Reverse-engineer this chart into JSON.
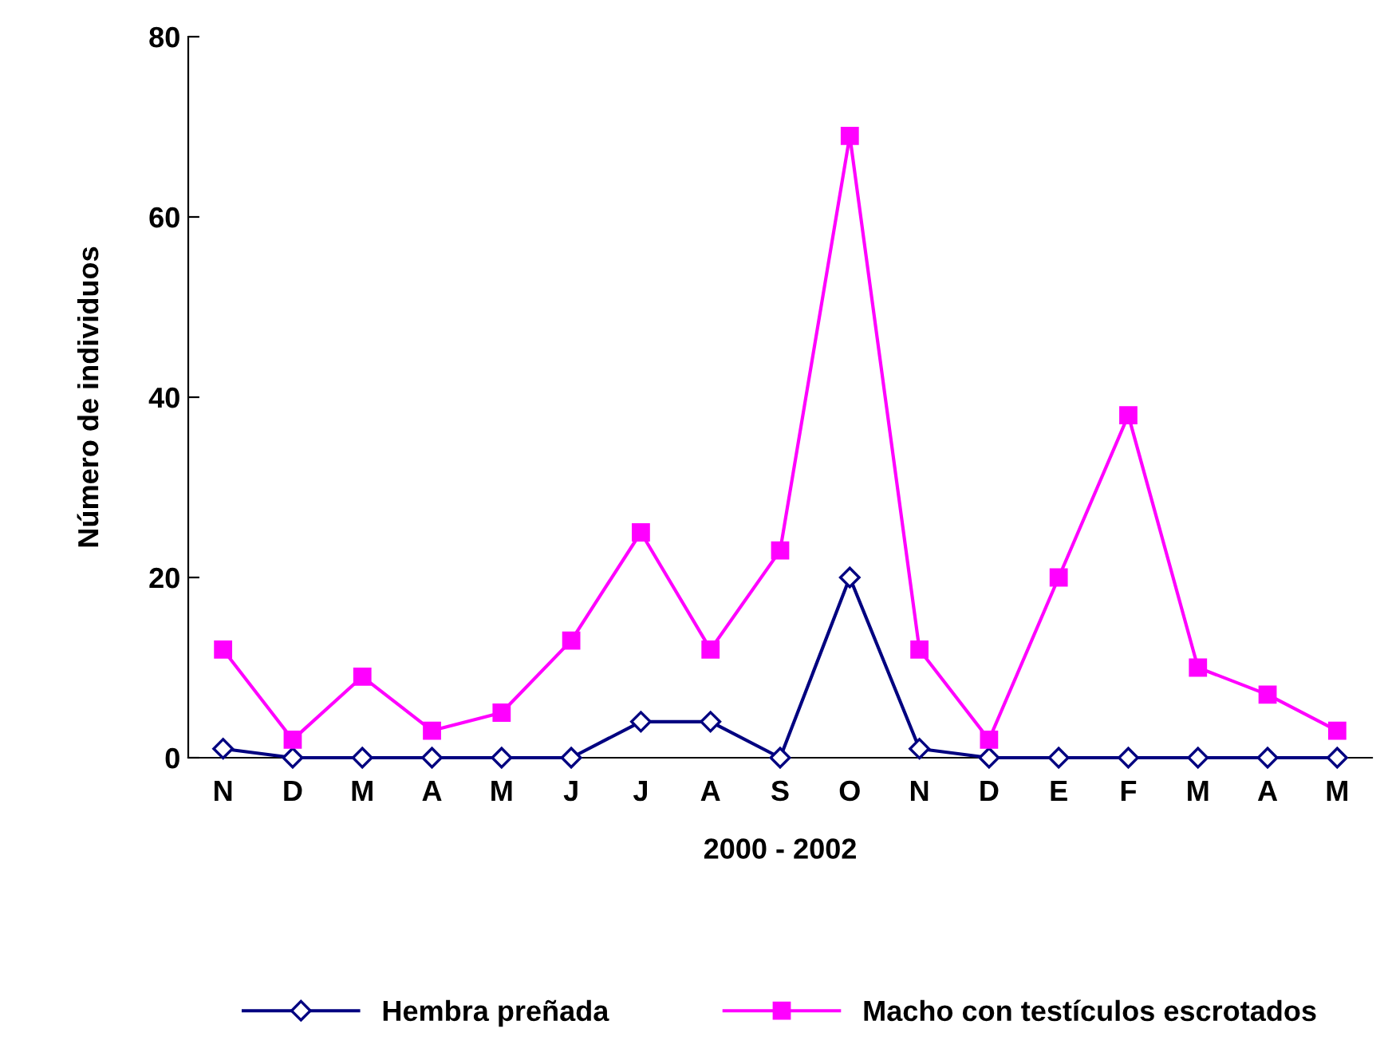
{
  "chart_data": {
    "type": "line",
    "xlabel": "2000 - 2002",
    "ylabel": "Número de individuos",
    "categories": [
      "N",
      "D",
      "M",
      "A",
      "M",
      "J",
      "J",
      "A",
      "S",
      "O",
      "N",
      "D",
      "E",
      "F",
      "M",
      "A",
      "M"
    ],
    "series": [
      {
        "name": "Hembra preñada",
        "color": "#000080",
        "marker": "diamond",
        "values": [
          1,
          0,
          0,
          0,
          0,
          0,
          4,
          4,
          0,
          20,
          1,
          0,
          0,
          0,
          0,
          0,
          0
        ]
      },
      {
        "name": "Macho con testículos escrotados",
        "color": "#ff00ff",
        "marker": "square",
        "values": [
          12,
          2,
          9,
          3,
          5,
          13,
          25,
          12,
          23,
          69,
          12,
          2,
          20,
          38,
          10,
          7,
          3
        ]
      }
    ],
    "ylim": [
      0,
      80
    ],
    "yticks": [
      0,
      20,
      40,
      60,
      80
    ],
    "grid": false,
    "legend": "bottom",
    "line_style": "solid"
  }
}
